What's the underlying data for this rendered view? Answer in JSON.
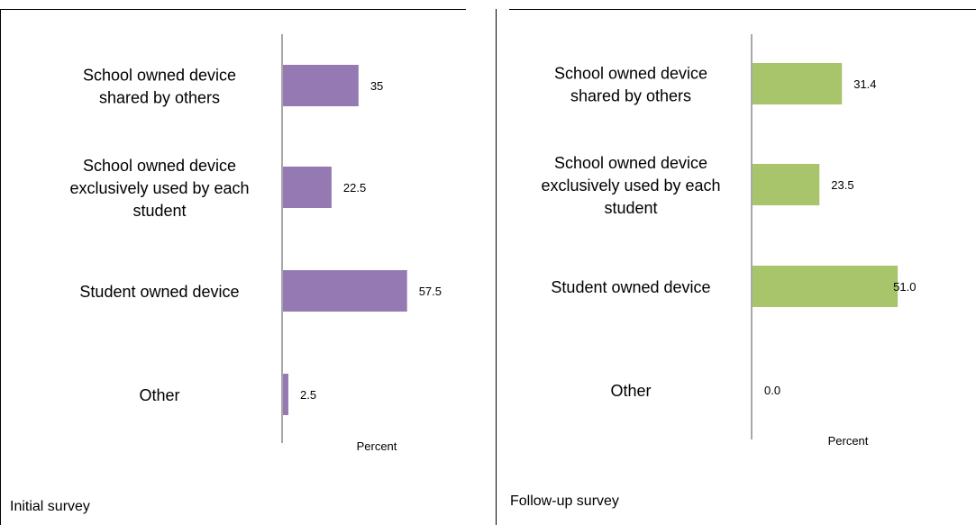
{
  "chart_data": [
    {
      "type": "bar",
      "orientation": "horizontal",
      "panel_label": "Initial survey",
      "categories": [
        "School owned device shared by others",
        "School owned device exclusively used by each student",
        "Student owned device",
        "Other"
      ],
      "category_lines": [
        [
          "School owned device",
          "shared by others"
        ],
        [
          "School owned device",
          "exclusively used by each",
          "student"
        ],
        [
          "Student owned device"
        ],
        [
          "Other"
        ]
      ],
      "values": [
        35,
        22.5,
        57.5,
        2.5
      ],
      "value_labels": [
        "35",
        "22.5",
        "57.5",
        "2.5"
      ],
      "xlabel": "Percent",
      "color": "#9479B3",
      "grid": false
    },
    {
      "type": "bar",
      "orientation": "horizontal",
      "panel_label": "Follow-up survey",
      "categories": [
        "School owned device shared by others",
        "School owned device exclusively used by each student",
        "Student owned device",
        "Other"
      ],
      "category_lines": [
        [
          "School owned device",
          "shared by others"
        ],
        [
          "School owned device",
          "exclusively used by each",
          "student"
        ],
        [
          "Student owned device"
        ],
        [
          "Other"
        ]
      ],
      "values": [
        31.4,
        23.5,
        51.0,
        0.0
      ],
      "value_labels": [
        "31.4",
        "23.5",
        "51.0",
        "0.0"
      ],
      "xlabel": "Percent",
      "color": "#A9C56B",
      "grid": false
    }
  ]
}
